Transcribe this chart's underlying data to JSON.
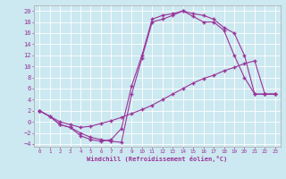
{
  "xlabel": "Windchill (Refroidissement éolien,°C)",
  "bg_color": "#cce8f0",
  "line_color": "#993399",
  "xlim": [
    -0.5,
    23.5
  ],
  "ylim": [
    -4.5,
    21
  ],
  "xticks": [
    0,
    1,
    2,
    3,
    4,
    5,
    6,
    7,
    8,
    9,
    10,
    11,
    12,
    13,
    14,
    15,
    16,
    17,
    18,
    19,
    20,
    21,
    22,
    23
  ],
  "yticks": [
    -4,
    -2,
    0,
    2,
    4,
    6,
    8,
    10,
    12,
    14,
    16,
    18,
    20
  ],
  "line1_x": [
    0,
    1,
    2,
    3,
    4,
    5,
    6,
    7,
    8,
    9,
    10,
    11,
    12,
    13,
    14,
    15,
    16,
    17,
    18,
    19,
    20,
    21,
    22,
    23
  ],
  "line1_y": [
    2,
    1,
    -0.5,
    -1,
    -2.5,
    -3.2,
    -3.5,
    -3.2,
    -1.2,
    6.5,
    12,
    18.5,
    19.2,
    19.5,
    20,
    19.5,
    19.2,
    18.5,
    17.0,
    16.0,
    12.0,
    5.0,
    5.0,
    5.0
  ],
  "line2_x": [
    0,
    2,
    3,
    4,
    5,
    6,
    7,
    8,
    9,
    10,
    11,
    12,
    13,
    14,
    15,
    16,
    17,
    18,
    19,
    20,
    21,
    22,
    23
  ],
  "line2_y": [
    2,
    0,
    -0.5,
    -1,
    -0.8,
    -0.3,
    0.2,
    0.8,
    1.5,
    2.2,
    3.0,
    4.0,
    5.0,
    6.0,
    7.0,
    7.8,
    8.4,
    9.2,
    9.8,
    10.5,
    11.0,
    5.0,
    5.0
  ],
  "line3_x": [
    0,
    1,
    2,
    3,
    4,
    5,
    6,
    7,
    8,
    9,
    10,
    11,
    12,
    13,
    14,
    15,
    16,
    17,
    18,
    19,
    20,
    21,
    22,
    23
  ],
  "line3_y": [
    2,
    1,
    -0.5,
    -1,
    -2.0,
    -2.8,
    -3.2,
    -3.5,
    -3.7,
    5.0,
    11.5,
    18.0,
    18.5,
    19.2,
    20.0,
    19.0,
    18.0,
    18.0,
    16.5,
    12.0,
    8.0,
    5.0,
    5.0,
    5.0
  ]
}
